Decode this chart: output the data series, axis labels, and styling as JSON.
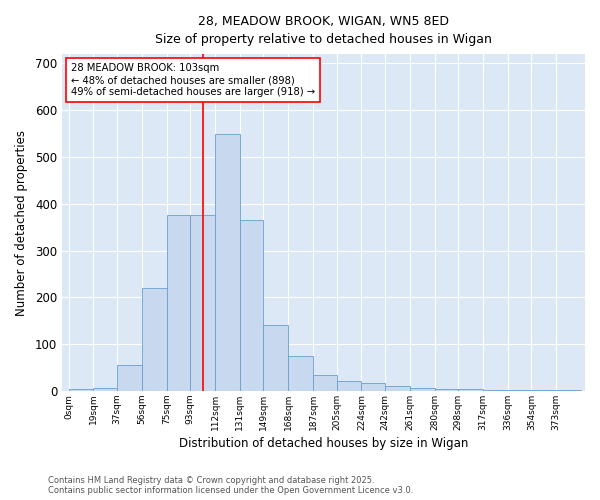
{
  "title_line1": "28, MEADOW BROOK, WIGAN, WN5 8ED",
  "title_line2": "Size of property relative to detached houses in Wigan",
  "xlabel": "Distribution of detached houses by size in Wigan",
  "ylabel": "Number of detached properties",
  "annotation_line1": "28 MEADOW BROOK: 103sqm",
  "annotation_line2": "← 48% of detached houses are smaller (898)",
  "annotation_line3": "49% of semi-detached houses are larger (918) →",
  "bar_color": "#c8d8ee",
  "bar_edge_color": "#6a9fcb",
  "redline_x": 103,
  "bin_edges": [
    0,
    19,
    37,
    56,
    75,
    93,
    112,
    131,
    149,
    168,
    187,
    205,
    224,
    242,
    261,
    280,
    298,
    317,
    336,
    354,
    373,
    392
  ],
  "bar_heights": [
    3,
    6,
    55,
    220,
    375,
    375,
    550,
    365,
    140,
    75,
    35,
    22,
    16,
    10,
    7,
    5,
    4,
    2,
    2,
    1,
    1
  ],
  "tick_labels": [
    "0sqm",
    "19sqm",
    "37sqm",
    "56sqm",
    "75sqm",
    "93sqm",
    "112sqm",
    "131sqm",
    "149sqm",
    "168sqm",
    "187sqm",
    "205sqm",
    "224sqm",
    "242sqm",
    "261sqm",
    "280sqm",
    "298sqm",
    "317sqm",
    "336sqm",
    "354sqm",
    "373sqm"
  ],
  "ylim": [
    0,
    720
  ],
  "xlim": [
    -5,
    395
  ],
  "background_color": "#dce8f5",
  "footnote_line1": "Contains HM Land Registry data © Crown copyright and database right 2025.",
  "footnote_line2": "Contains public sector information licensed under the Open Government Licence v3.0."
}
